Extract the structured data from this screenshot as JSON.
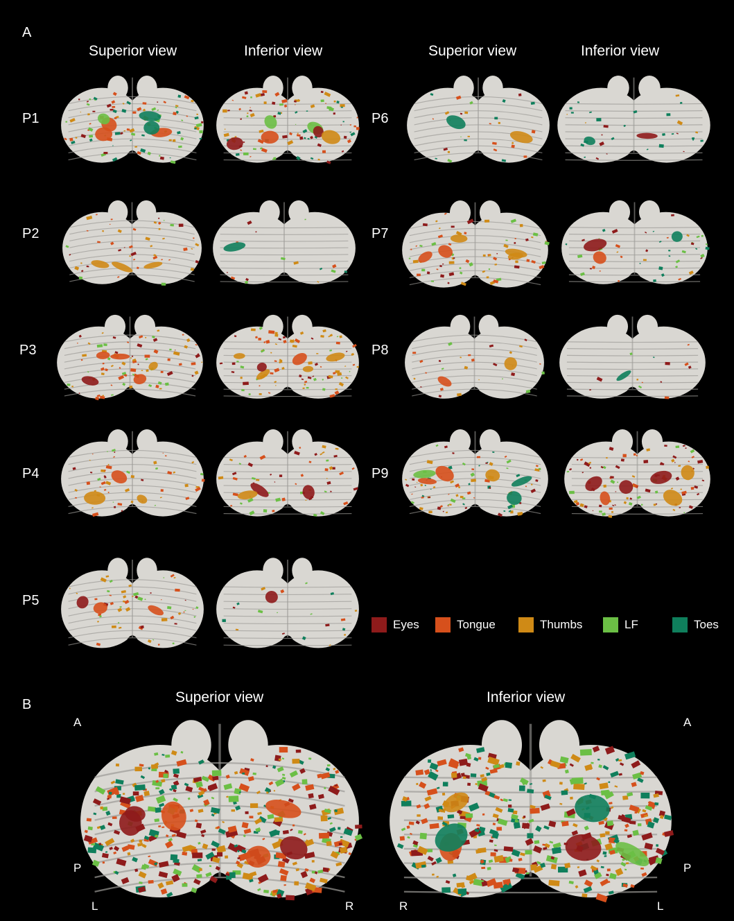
{
  "panel_a": {
    "letter": "A",
    "col_headers": [
      "Superior view",
      "Inferior view",
      "Superior view",
      "Inferior view"
    ],
    "participants": [
      "P1",
      "P2",
      "P3",
      "P4",
      "P5",
      "P6",
      "P7",
      "P8",
      "P9"
    ]
  },
  "legend": [
    {
      "label": "Eyes",
      "color": "#8e1b1b"
    },
    {
      "label": "Tongue",
      "color": "#d6501c"
    },
    {
      "label": "Thumbs",
      "color": "#cf8a16"
    },
    {
      "label": "LF",
      "color": "#6bbf45"
    },
    {
      "label": "Toes",
      "color": "#0f7f5c"
    }
  ],
  "panel_b": {
    "letter": "B",
    "headers": [
      "Superior view",
      "Inferior view"
    ],
    "superior_axes": {
      "a": "A",
      "p": "P",
      "l": "L",
      "r": "R"
    },
    "inferior_axes": {
      "a": "A",
      "p": "P",
      "r": "R",
      "l": "L"
    }
  },
  "colors": {
    "background": "#000000",
    "tissue": "#d9d7d2",
    "tissue_shadow": "#9b9a96"
  }
}
